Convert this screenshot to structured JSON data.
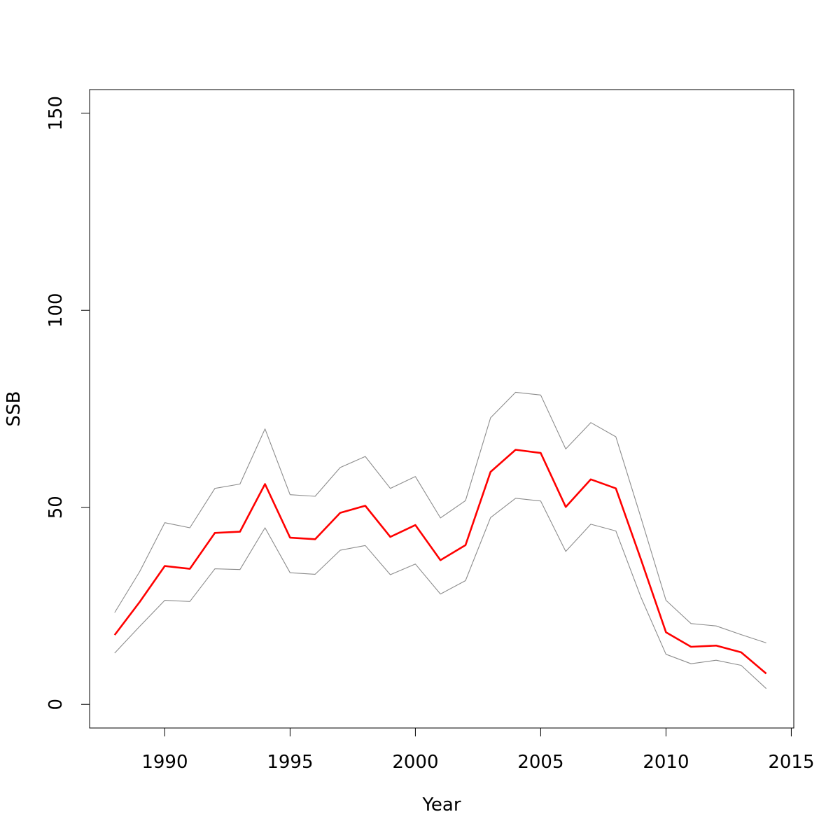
{
  "chart_data": {
    "type": "line",
    "title": "",
    "xlabel": "Year",
    "ylabel": "SSB",
    "xlim": [
      1987.0,
      2015.1
    ],
    "ylim": [
      -6,
      156
    ],
    "xticks": [
      1990,
      1995,
      2000,
      2005,
      2010,
      2015
    ],
    "yticks": [
      0,
      50,
      100,
      150
    ],
    "x": [
      1988,
      1989,
      1990,
      1991,
      1992,
      1993,
      1994,
      1995,
      1996,
      1997,
      1998,
      1999,
      2000,
      2001,
      2002,
      2003,
      2004,
      2005,
      2006,
      2007,
      2008,
      2009,
      2010,
      2011,
      2012,
      2013,
      2014
    ],
    "series": [
      {
        "role": "upper",
        "color": "#8c8c8c",
        "values": [
          23.3,
          33.7,
          46.1,
          44.8,
          54.8,
          55.9,
          69.9,
          53.2,
          52.8,
          60.1,
          62.9,
          54.8,
          57.8,
          47.3,
          51.7,
          72.7,
          79.2,
          78.5,
          64.8,
          71.5,
          67.9,
          47.4,
          26.4,
          20.5,
          19.9,
          17.7,
          15.6
        ]
      },
      {
        "role": "estimate",
        "color": "#ff0000",
        "values": [
          17.6,
          26.0,
          35.1,
          34.4,
          43.5,
          43.8,
          55.9,
          42.3,
          41.9,
          48.6,
          50.4,
          42.5,
          45.5,
          36.6,
          40.4,
          59.0,
          64.6,
          63.8,
          50.1,
          57.1,
          54.8,
          36.8,
          18.3,
          14.6,
          14.9,
          13.2,
          7.8
        ]
      },
      {
        "role": "lower",
        "color": "#8c8c8c",
        "values": [
          13.0,
          19.8,
          26.4,
          26.1,
          34.4,
          34.2,
          44.8,
          33.4,
          33.0,
          39.1,
          40.3,
          32.9,
          35.6,
          28.0,
          31.4,
          47.4,
          52.3,
          51.6,
          38.8,
          45.7,
          44.0,
          27.2,
          12.7,
          10.3,
          11.2,
          9.9,
          4.0
        ]
      }
    ],
    "grid": false
  }
}
